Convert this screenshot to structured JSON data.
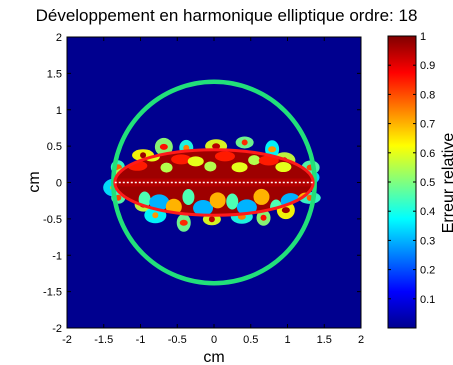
{
  "title": "Développement en harmonique elliptique ordre: 18",
  "chart_data": {
    "type": "heatmap",
    "title": "Développement en harmonique elliptique ordre: 18",
    "xlabel": "cm",
    "ylabel": "cm",
    "xlim": [
      -2,
      2
    ],
    "ylim": [
      -2,
      2
    ],
    "x_ticks": [
      -2,
      -1.5,
      -1,
      -0.5,
      0,
      0.5,
      1,
      1.5,
      2
    ],
    "y_ticks": [
      -2,
      -1.5,
      -1,
      -0.5,
      0,
      0.5,
      1,
      1.5,
      2
    ],
    "x_tick_labels": [
      "-2",
      "-1.5",
      "-1",
      "-0.5",
      "0",
      "0.5",
      "1",
      "1.5",
      "2"
    ],
    "y_tick_labels": [
      "-2",
      "-1.5",
      "-1",
      "-0.5",
      "0",
      "0.5",
      "1",
      "1.5",
      "2"
    ],
    "colorbar": {
      "label": "Erreur relative",
      "range": [
        0,
        1
      ],
      "ticks": [
        0.1,
        0.2,
        0.3,
        0.4,
        0.5,
        0.6,
        0.7,
        0.8,
        0.9,
        1
      ],
      "tick_labels": [
        "0.1",
        "0.2",
        "0.3",
        "0.4",
        "0.5",
        "0.6",
        "0.7",
        "0.8",
        "0.9",
        "1"
      ],
      "colormap": "jet"
    },
    "background_value": 0,
    "overlays": {
      "circle": {
        "center": [
          0,
          0
        ],
        "radius": 1.37,
        "color": "#22e07a"
      },
      "ellipse": {
        "center": [
          0,
          0
        ],
        "semi_axis_x": 1.35,
        "semi_axis_y": 0.45,
        "color": "#ff1a1a"
      },
      "segment": {
        "x": [
          -1.35,
          1.35
        ],
        "y": [
          0,
          0
        ],
        "color": "#ffffff",
        "style": "dotted"
      }
    },
    "grid": false
  }
}
